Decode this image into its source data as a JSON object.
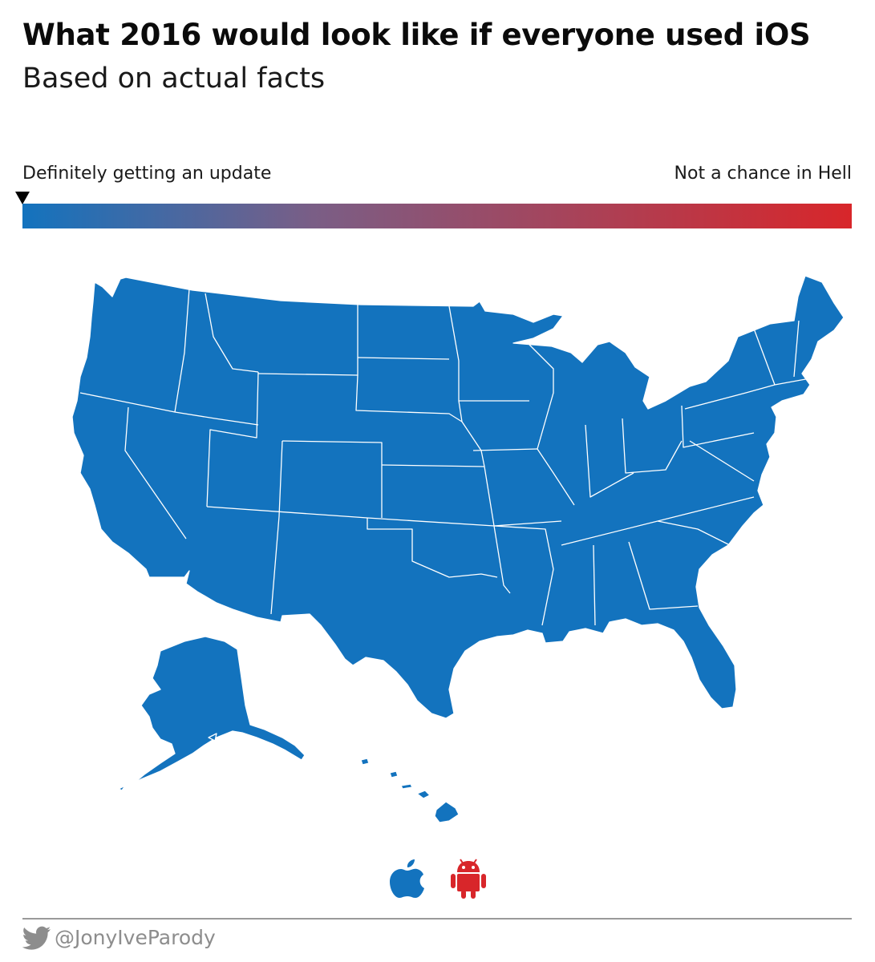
{
  "header": {
    "title": "What 2016 would look like if everyone used iOS",
    "subtitle": "Based on actual facts"
  },
  "scale": {
    "left_label": "Definitely getting an update",
    "right_label": "Not a chance in Hell",
    "marker_position": 0,
    "color_start": "#1373be",
    "color_end": "#d8262a"
  },
  "map": {
    "fill_color": "#1373be",
    "border_color": "#ffffff",
    "regions": [
      "contiguous-us",
      "alaska",
      "hawaii"
    ]
  },
  "legend": {
    "items": [
      {
        "icon": "apple-icon",
        "color": "#1373be"
      },
      {
        "icon": "android-icon",
        "color": "#d8262a"
      }
    ]
  },
  "footer": {
    "handle": "@JonyIveParody",
    "icon": "twitter-bird-icon"
  }
}
